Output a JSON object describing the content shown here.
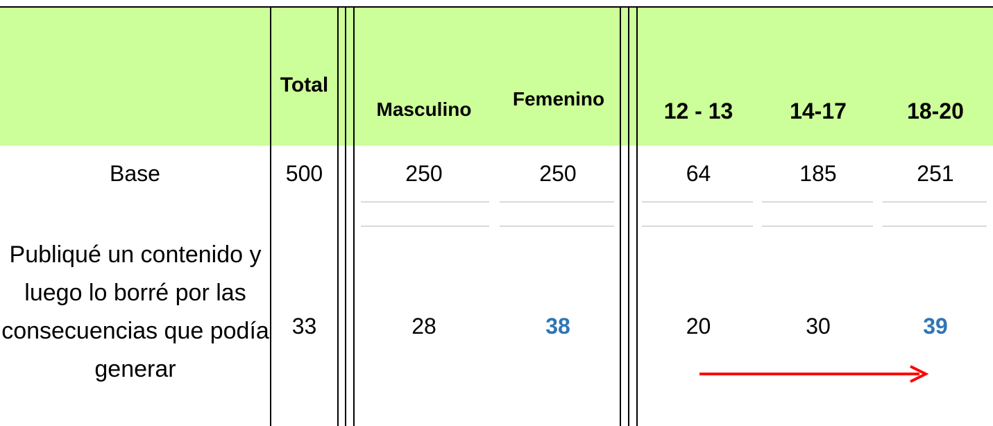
{
  "table": {
    "headers": [
      "Total",
      "Masculino",
      "Femenino",
      "12 - 13",
      "14-17",
      "18-20"
    ],
    "rows": [
      {
        "label": "Base",
        "values": [
          500,
          250,
          250,
          64,
          185,
          251
        ]
      },
      {
        "label": "Publiqué un contenido y luego lo borré por las consecuencias que podía generar",
        "values": [
          33,
          28,
          38,
          20,
          30,
          39
        ]
      }
    ]
  }
}
